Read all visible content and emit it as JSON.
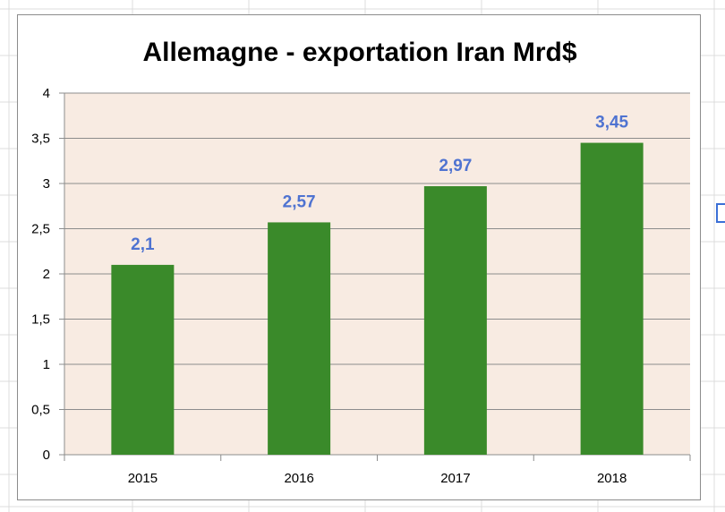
{
  "chart_data": {
    "type": "bar",
    "title": "Allemagne - exportation Iran Mrd$",
    "categories": [
      "2015",
      "2016",
      "2017",
      "2018"
    ],
    "values": [
      2.1,
      2.57,
      2.97,
      3.45
    ],
    "value_labels": [
      "2,1",
      "2,57",
      "2,97",
      "3,45"
    ],
    "ylim": [
      0,
      4
    ],
    "y_ticks": [
      "0",
      "0,5",
      "1",
      "1,5",
      "2",
      "2,5",
      "3",
      "3,5",
      "4"
    ],
    "grid": true,
    "legend": "none",
    "colors": {
      "bar": "#3a8a2a",
      "plot_background": "#f8ebe2",
      "data_label": "#4f73d1",
      "gridline": "#8c8c8c"
    }
  }
}
